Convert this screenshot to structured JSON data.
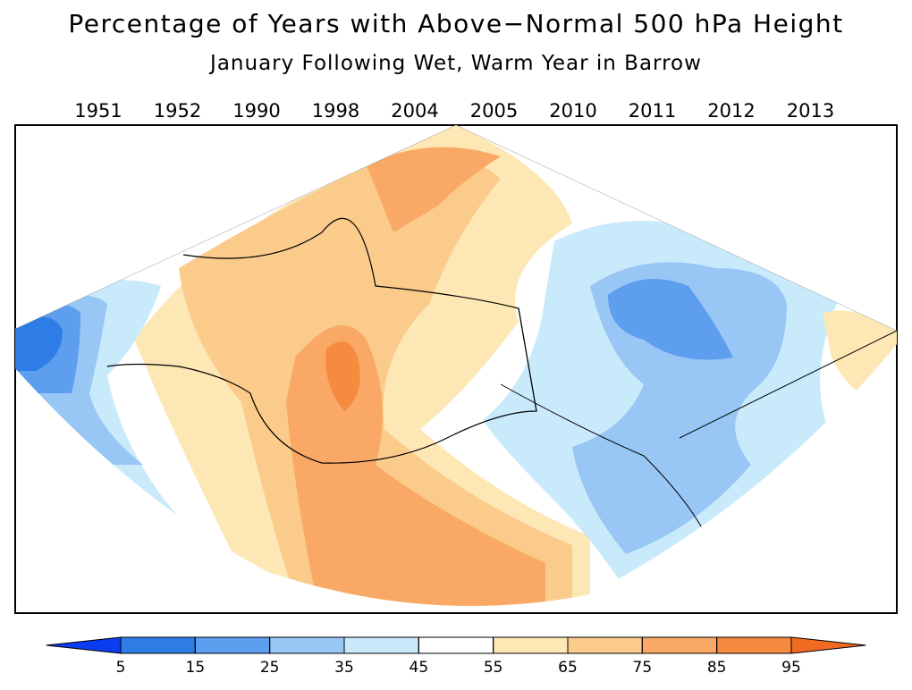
{
  "header": {
    "title": "Percentage of Years with Above−Normal 500 hPa Height",
    "subtitle": "January Following Wet, Warm Year in Barrow"
  },
  "years": [
    "1951",
    "1952",
    "1990",
    "1998",
    "2004",
    "2005",
    "2010",
    "2011",
    "2012",
    "2013"
  ],
  "colorbar": {
    "ticks": [
      5,
      15,
      25,
      35,
      45,
      55,
      65,
      75,
      85,
      95
    ],
    "colors": [
      "#0a3cf0",
      "#2e7ce6",
      "#5d9eef",
      "#98c6f5",
      "#c9eafb",
      "#ffffff",
      "#fde7b4",
      "#fbcb8c",
      "#f9a965",
      "#f68a3f",
      "#f06a22"
    ]
  }
}
